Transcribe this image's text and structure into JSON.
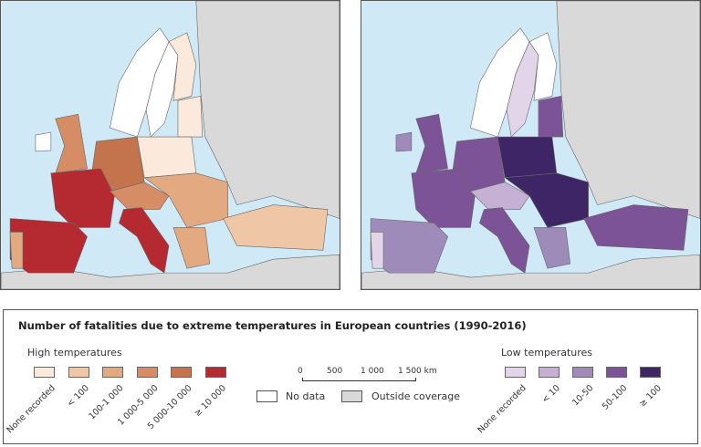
{
  "title": "Number of fatalities due to extreme temperatures in European countries (1990-2016)",
  "high": {
    "heading": "High temperatures",
    "classes": [
      {
        "label": "None recorded",
        "color": "#fbeadb"
      },
      {
        "label": "< 100",
        "color": "#efc6a6"
      },
      {
        "label": "100-1 000",
        "color": "#e3a981"
      },
      {
        "label": "1 000-5 000",
        "color": "#d68d66"
      },
      {
        "label": "5 000-10 000",
        "color": "#c4744c"
      },
      {
        "label": "≥ 10 000",
        "color": "#b52a31"
      }
    ]
  },
  "low": {
    "heading": "Low temperatures",
    "classes": [
      {
        "label": "None recorded",
        "color": "#e2d5ea"
      },
      {
        "label": "< 10",
        "color": "#c6b1d4"
      },
      {
        "label": "10-50",
        "color": "#9f8bba"
      },
      {
        "label": "50-100",
        "color": "#7b5396"
      },
      {
        "label": "≥ 100",
        "color": "#3d2566"
      }
    ]
  },
  "scale": {
    "ticks": [
      "0",
      "500",
      "1 000",
      "1 500 km"
    ]
  },
  "other": {
    "no_data": "No data",
    "outside": "Outside coverage",
    "no_data_color": "#ffffff",
    "outside_color": "#d9d9d9"
  }
}
